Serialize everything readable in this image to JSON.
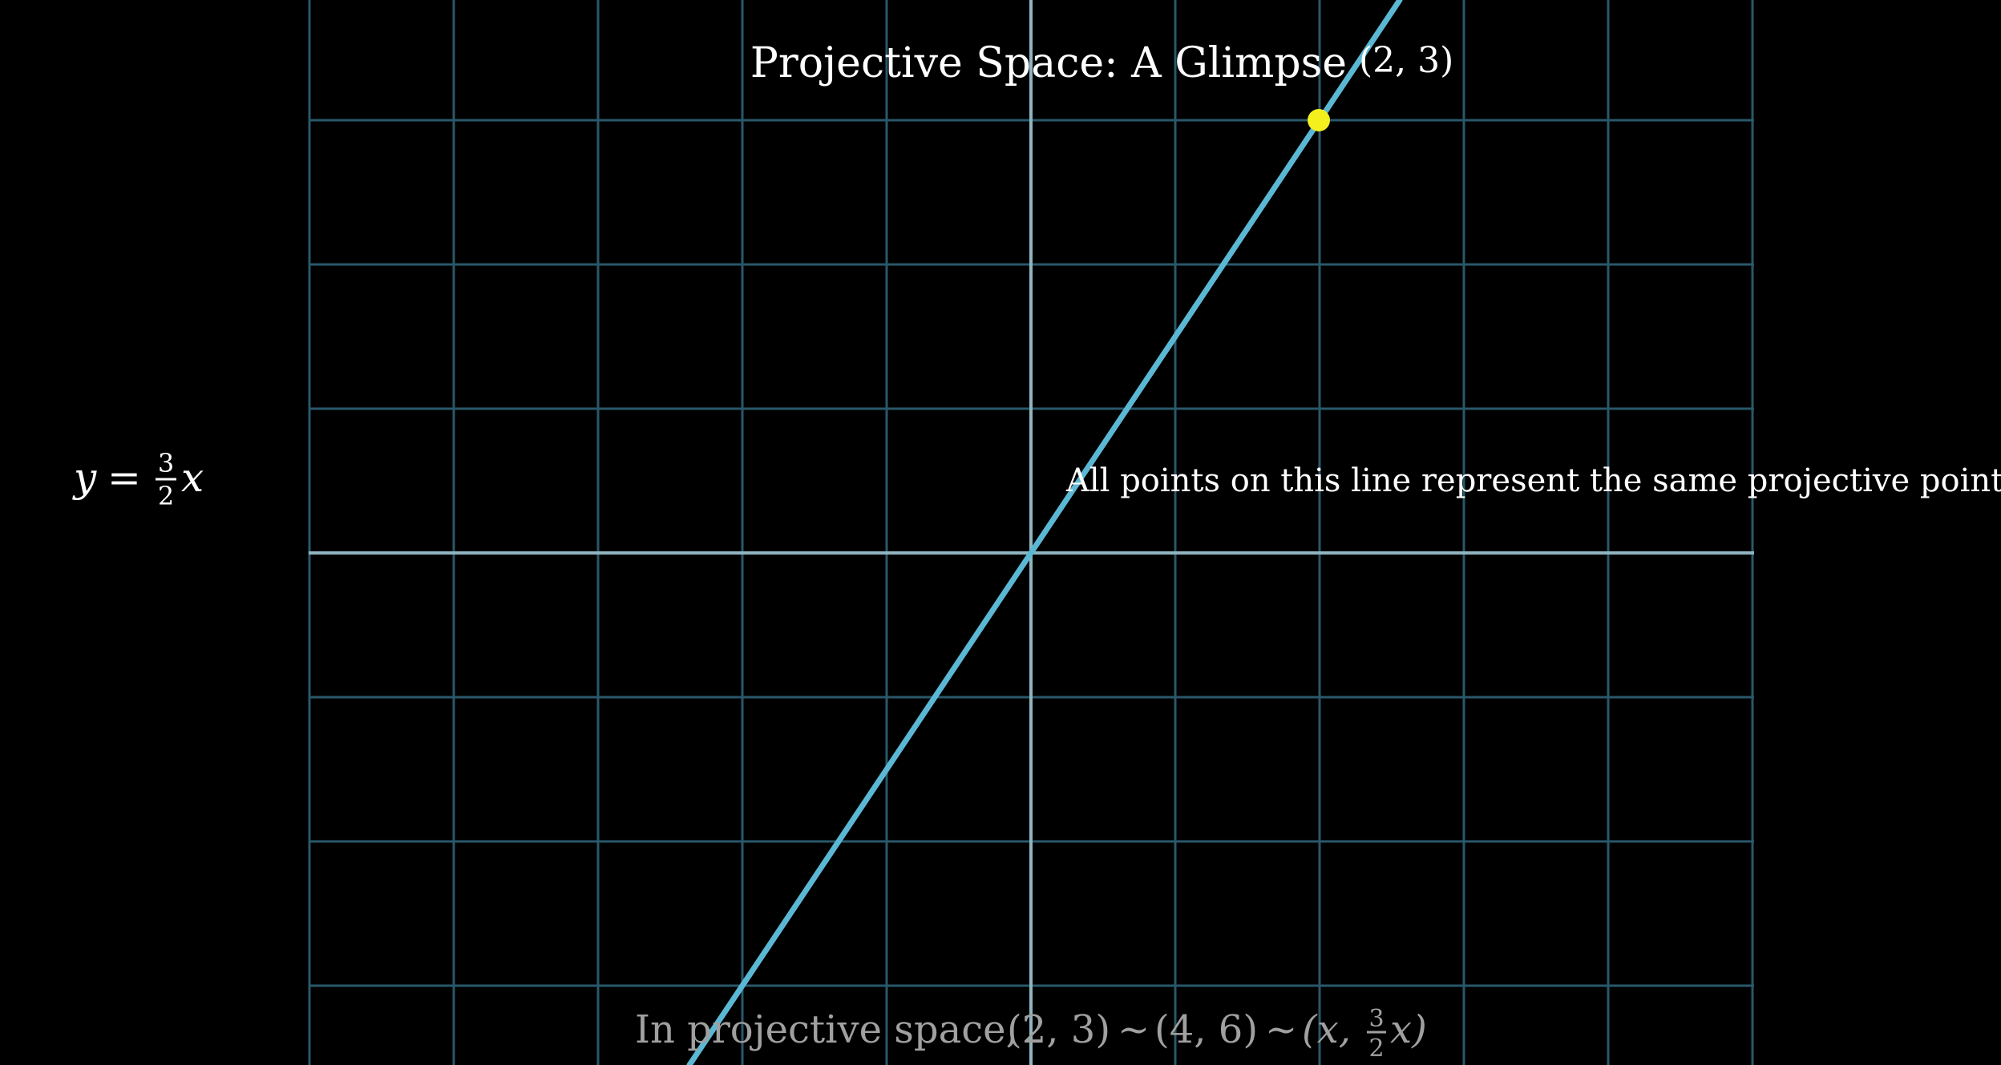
{
  "title": "Projective Space: A Glimpse",
  "equation": {
    "lhs": "y",
    "eq": "=",
    "num": "3",
    "den": "2",
    "var": "x"
  },
  "point": {
    "label": "(2, 3)",
    "x": 2,
    "y": 3,
    "color": "#f4f01e"
  },
  "note": "All points on this line represent the same projective point.",
  "caption": {
    "prefix": "In projective space,",
    "p1": "(2, 3)",
    "sim1": "~",
    "p2": "(4, 6)",
    "sim2": "~",
    "p3_open": "(x,",
    "p3_num": "3",
    "p3_den": "2",
    "p3_close": "x)"
  },
  "chart_data": {
    "type": "line",
    "xlim": [
      -5,
      5
    ],
    "ylim": [
      -3,
      3
    ],
    "grid": true,
    "series": [
      {
        "x": [
          -2.6,
          2.5
        ],
        "y": [
          -3.9,
          3.75
        ],
        "slope": 1.5
      }
    ],
    "points": [
      {
        "x": 2,
        "y": 3
      }
    ],
    "colors": {
      "grid": "#29586a",
      "axis": "#8fb5c0",
      "line": "#5bb8d4",
      "point": "#f4f01e",
      "text": "#ffffff",
      "caption": "#a0a0a0"
    }
  }
}
